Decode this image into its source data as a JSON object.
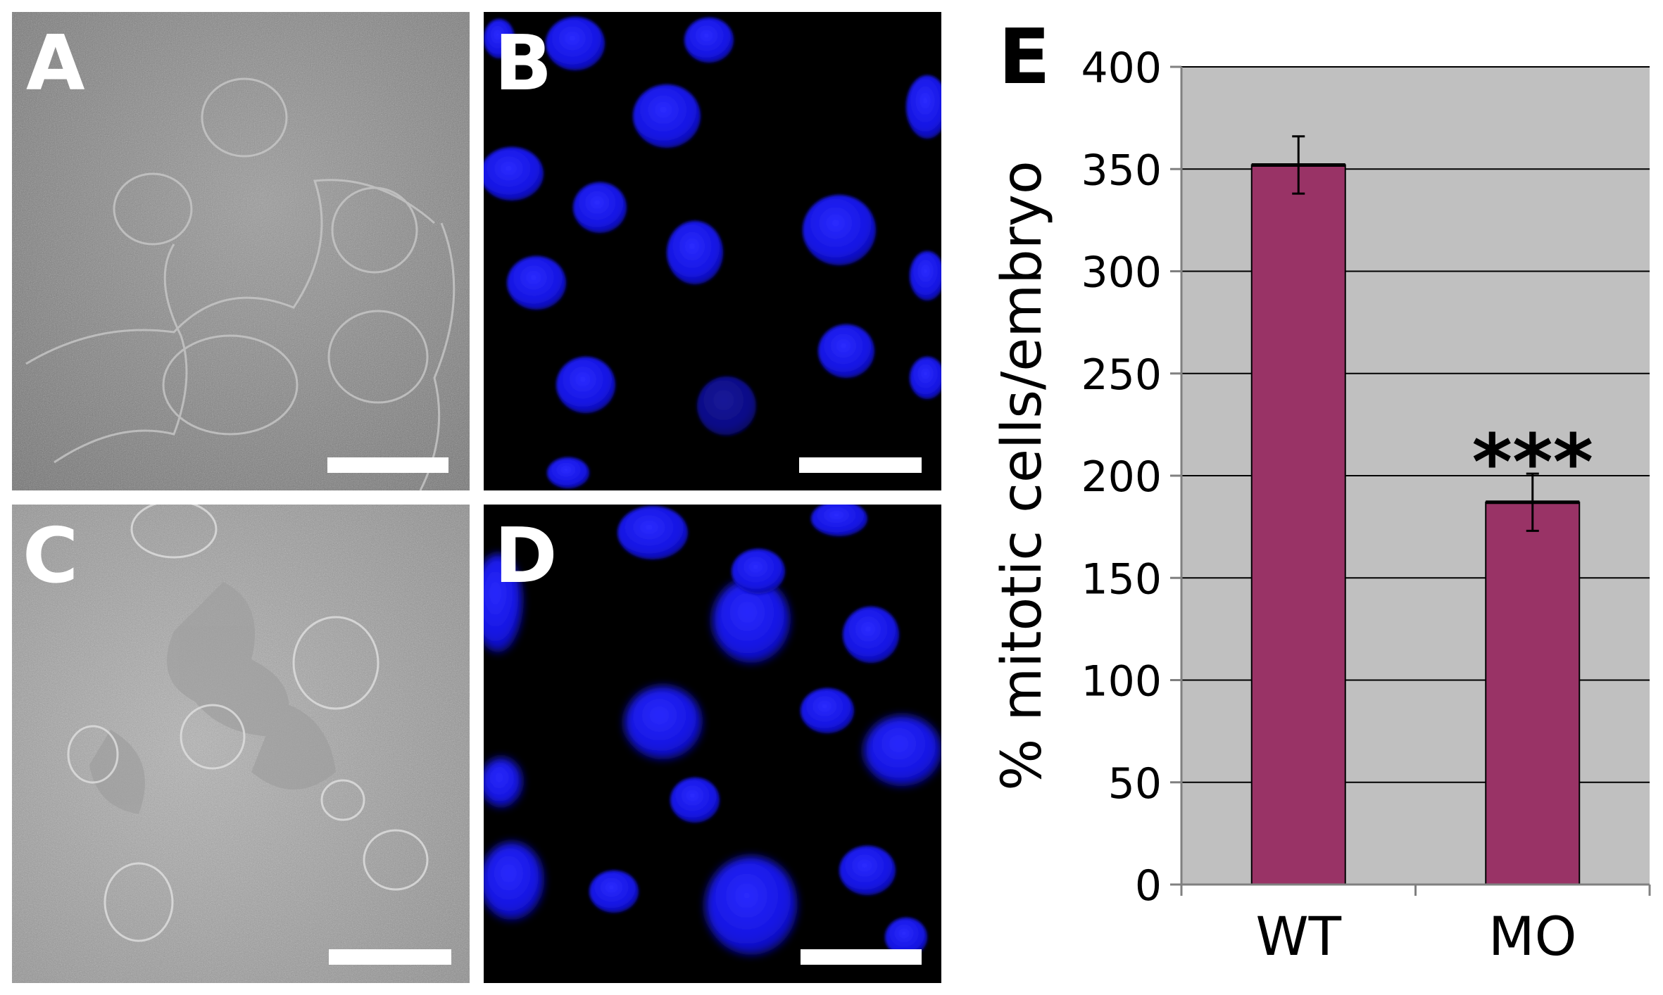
{
  "panels": [
    {
      "letter": "A",
      "kind": "DIC micrograph"
    },
    {
      "letter": "B",
      "kind": "fluorescence micrograph (blue nuclei)"
    },
    {
      "letter": "C",
      "kind": "DIC micrograph"
    },
    {
      "letter": "D",
      "kind": "fluorescence micrograph (blue nuclei)"
    }
  ],
  "colors": {
    "bar": "#993366",
    "plot_bg": "#c0c0c0",
    "nuclei": "#1a1aff"
  },
  "chart_data": {
    "type": "bar",
    "panel_letter": "E",
    "categories": [
      "WT",
      "MO"
    ],
    "values": [
      352,
      187
    ],
    "errors": [
      14,
      14
    ],
    "annotations": [
      {
        "category": "MO",
        "text": "***"
      }
    ],
    "ylabel": "% mitotic cells/embryo",
    "xlabel": "",
    "ylim": [
      0,
      400
    ],
    "yticks": [
      0,
      50,
      100,
      150,
      200,
      250,
      300,
      350,
      400
    ],
    "grid": true,
    "legend": "none"
  }
}
